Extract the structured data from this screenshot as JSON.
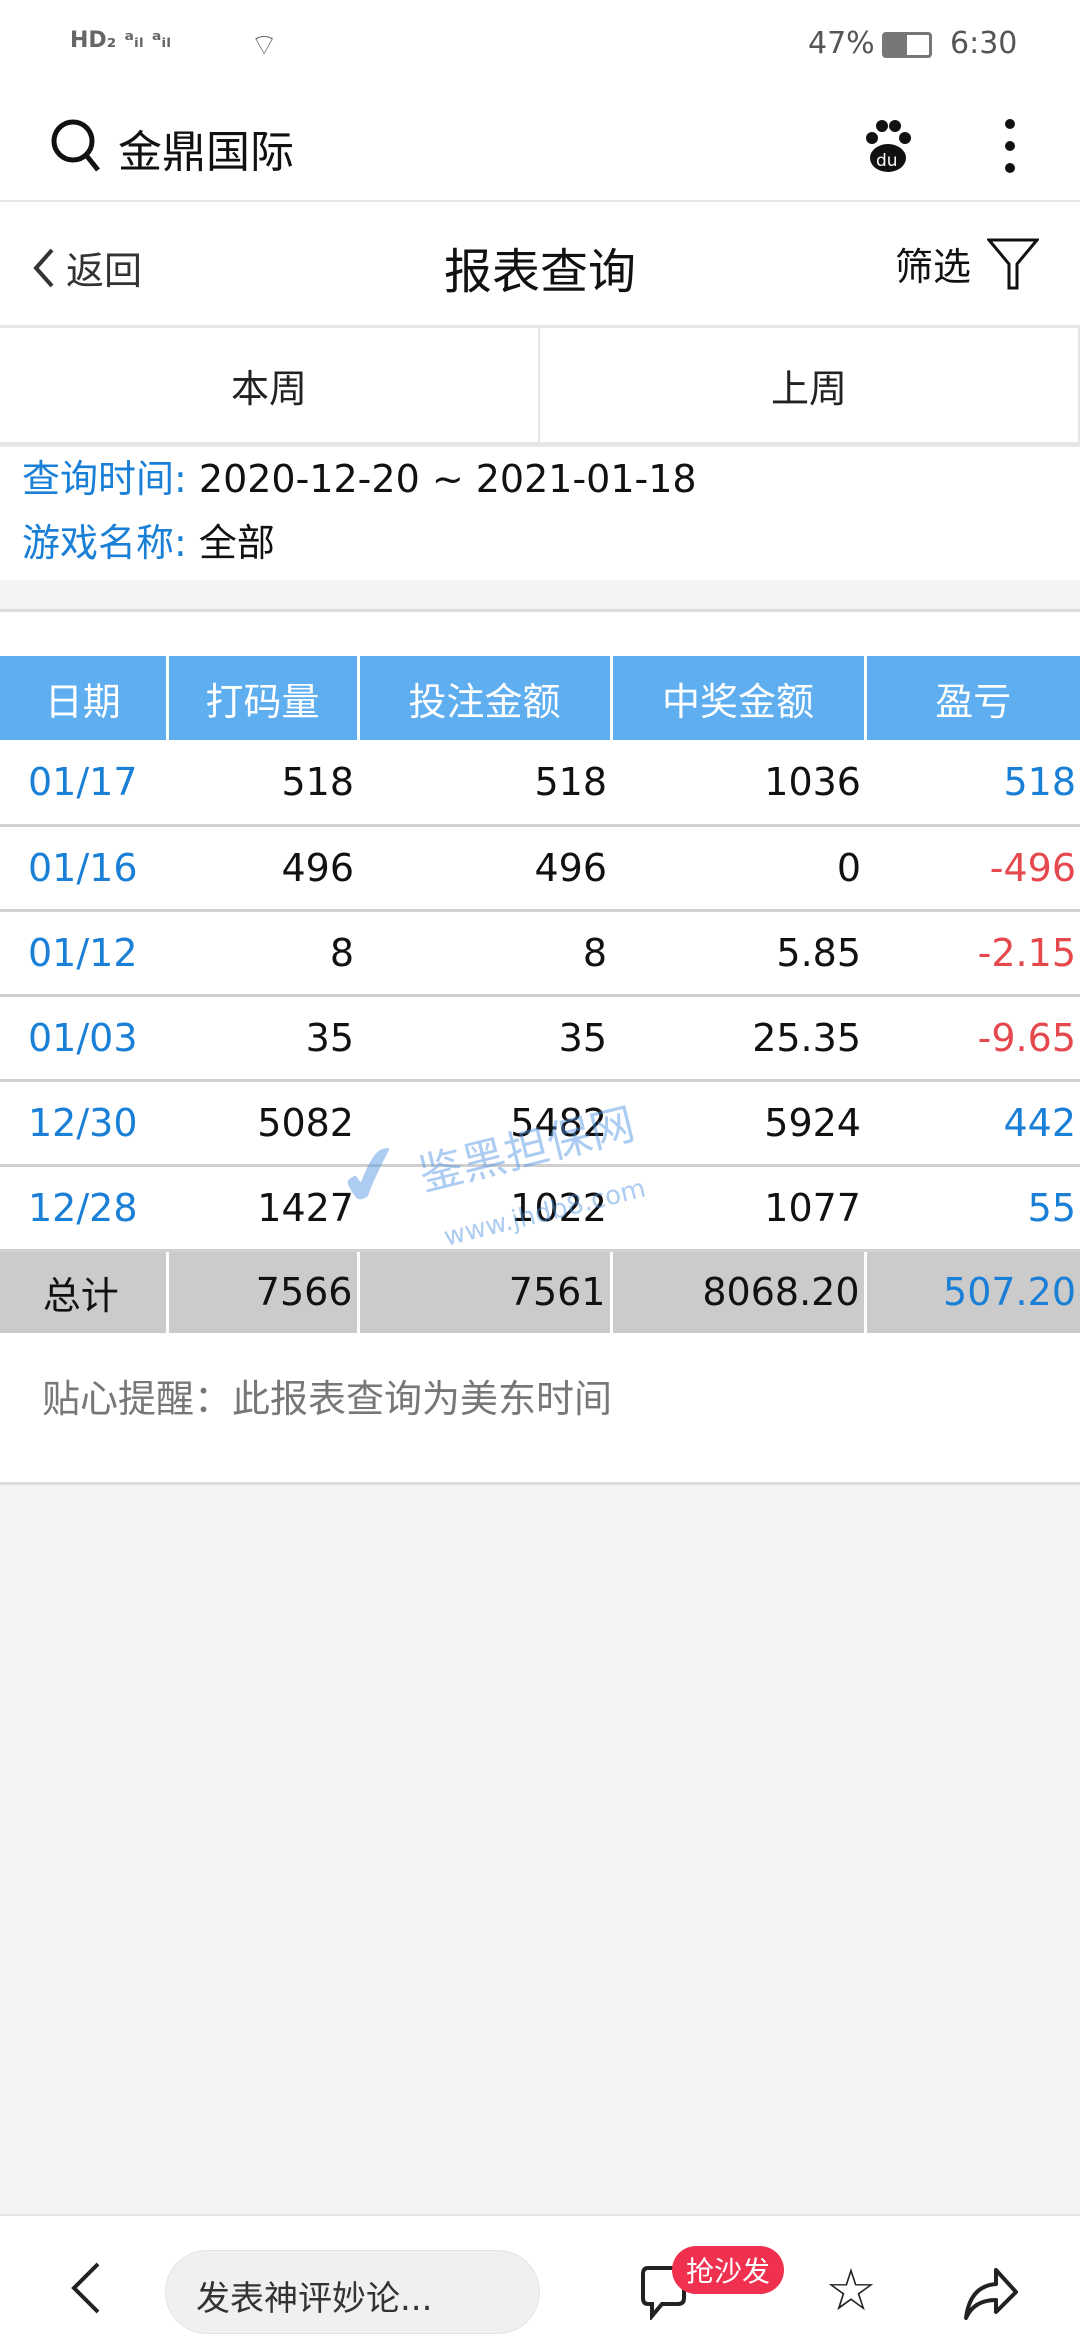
{
  "status_bar": {
    "left_icons": [
      "hd-icon",
      "signal-2g-icon",
      "signal-4g-icon",
      "wifi-icon"
    ],
    "battery": "47%",
    "time": "6:30"
  },
  "search_bar": {
    "query": "金鼎国际"
  },
  "header": {
    "back_label": "返回",
    "title": "报表查询",
    "filter_label": "筛选"
  },
  "tabs": [
    {
      "label": "本周"
    },
    {
      "label": "上周"
    }
  ],
  "info": {
    "time_label": "查询时间:",
    "time_value": "2020-12-20 ~ 2021-01-18",
    "game_label": "游戏名称:",
    "game_value": "全部"
  },
  "table": {
    "columns": [
      "日期",
      "打码量",
      "投注金额",
      "中奖金额",
      "盈亏"
    ],
    "rows": [
      [
        "01/17",
        "518",
        "518",
        "1036",
        "518"
      ],
      [
        "01/16",
        "496",
        "496",
        "0",
        "-496"
      ],
      [
        "01/12",
        "8",
        "8",
        "5.85",
        "-2.15"
      ],
      [
        "01/03",
        "35",
        "35",
        "25.35",
        "-9.65"
      ],
      [
        "12/30",
        "5082",
        "5482",
        "5924",
        "442"
      ],
      [
        "12/28",
        "1427",
        "1022",
        "1077",
        "55"
      ]
    ],
    "total": [
      "总计",
      "7566",
      "7561",
      "8068.20",
      "507.20"
    ]
  },
  "note": "贴心提醒：此报表查询为美东时间",
  "watermark": {
    "text": "鉴黑担保网",
    "url": "www.jhdb8.com"
  },
  "bottom_bar": {
    "comment_placeholder": "发表神评妙论...",
    "badge": "抢沙发"
  },
  "colors": {
    "accent": "#1a7fd6",
    "header_bg": "#5eaef0",
    "loss": "#e5484d",
    "badge": "#f0304f"
  }
}
